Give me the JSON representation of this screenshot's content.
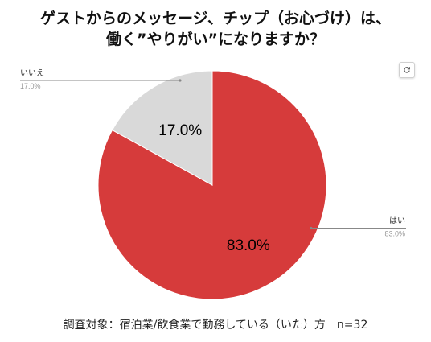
{
  "chart_data": {
    "type": "pie",
    "title_lines": [
      "ゲストからのメッセージ、チップ（お心づけ）は、",
      "働く”やりがい”になりますか？"
    ],
    "categories": [
      "はい",
      "いいえ"
    ],
    "values": [
      83.0,
      17.0
    ],
    "value_labels": [
      "83.0%",
      "17.0%"
    ],
    "colors": [
      "#d63b3b",
      "#d9d9d9"
    ],
    "legend": "callout-labels"
  },
  "footer": {
    "note": "調査対象：宿泊業/飲食業で勤務している（いた）方　n=32"
  },
  "toolbar": {
    "reload_icon": "reload-icon"
  }
}
